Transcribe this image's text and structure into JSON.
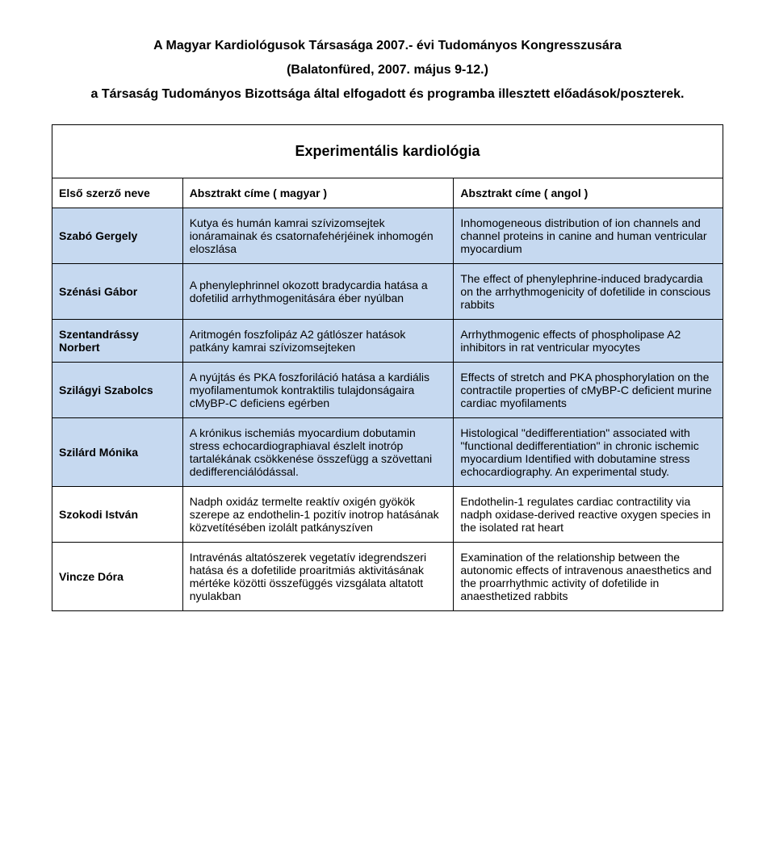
{
  "header": {
    "line1": "A Magyar Kardiológusok Társasága 2007.- évi Tudományos Kongresszusára",
    "line2": "(Balatonfüred, 2007. május 9-12.)",
    "line3": "a Társaság Tudományos Bizottsága által elfogadott és programba illesztett előadások/poszterek."
  },
  "table": {
    "section_title": "Experimentális kardiológia",
    "col_headers": {
      "author": "Első szerző neve",
      "hu": "Absztrakt címe ( magyar )",
      "en": "Absztrakt címe ( angol )"
    },
    "rows": [
      {
        "author": "Szabó Gergely",
        "hu": "Kutya és humán kamrai szívizomsejtek ionáramainak és csatornafehérjéinek inhomogén eloszlása",
        "en": "Inhomogeneous distribution of ion channels and channel proteins in canine and human ventricular myocardium",
        "shade": "blue"
      },
      {
        "author": "Szénási Gábor",
        "hu": "A phenylephrinnel okozott bradycardia hatása a dofetilid arrhythmogenitására éber nyúlban",
        "en": "The effect of phenylephrine-induced bradycardia on the arrhythmogenicity of dofetilide in conscious rabbits",
        "shade": "blue"
      },
      {
        "author": "Szentandrássy Norbert",
        "hu": "Aritmogén foszfolipáz A2 gátlószer hatások patkány kamrai szívizomsejteken",
        "en": "Arrhythmogenic effects of phospholipase A2 inhibitors in rat ventricular myocytes",
        "shade": "blue"
      },
      {
        "author": "Szilágyi Szabolcs",
        "hu": "A nyújtás és PKA foszforiláció hatása a kardiális myofilamentumok kontraktilis tulajdonságaira cMyBP-C deficiens egérben",
        "en": "Effects of stretch and PKA phosphorylation on the contractile properties of cMyBP-C deficient murine cardiac myofilaments",
        "shade": "blue"
      },
      {
        "author": "Szilárd Mónika",
        "hu": "A krónikus ischemiás myocardium dobutamin stress echocardiographiaval észlelt inotróp tartalékának csökkenése összefügg a szövettani dedifferenciálódással.",
        "en": "Histological \"dedifferentiation\" associated with \"functional dedifferentiation\" in chronic ischemic myocardium Identified with dobutamine stress echocardiography. An experimental study.",
        "shade": "blue"
      },
      {
        "author": "Szokodi István",
        "hu": "Nadph oxidáz termelte reaktív oxigén gyökök szerepe az endothelin-1 pozitív inotrop hatásának közvetítésében izolált patkányszíven",
        "en": "Endothelin-1 regulates cardiac contractility via nadph oxidase-derived reactive oxygen species in the isolated rat heart",
        "shade": "white"
      },
      {
        "author": "Vincze Dóra",
        "hu": "Intravénás altatószerek vegetatív idegrendszeri hatása és a dofetilide proaritmiás aktivitásának mértéke közötti összefüggés vizsgálata altatott nyulakban",
        "en": "Examination of the relationship between the autonomic effects of intravenous anaesthetics and the proarrhythmic activity of dofetilide in anaesthetized rabbits",
        "shade": "white"
      }
    ]
  },
  "colors": {
    "background": "#ffffff",
    "text": "#000000",
    "border": "#000000",
    "row_blue": "#c6d9f0",
    "row_white": "#ffffff"
  },
  "typography": {
    "title_fontsize": 16,
    "section_fontsize": 18,
    "body_fontsize": 14,
    "font_family": "Arial"
  }
}
